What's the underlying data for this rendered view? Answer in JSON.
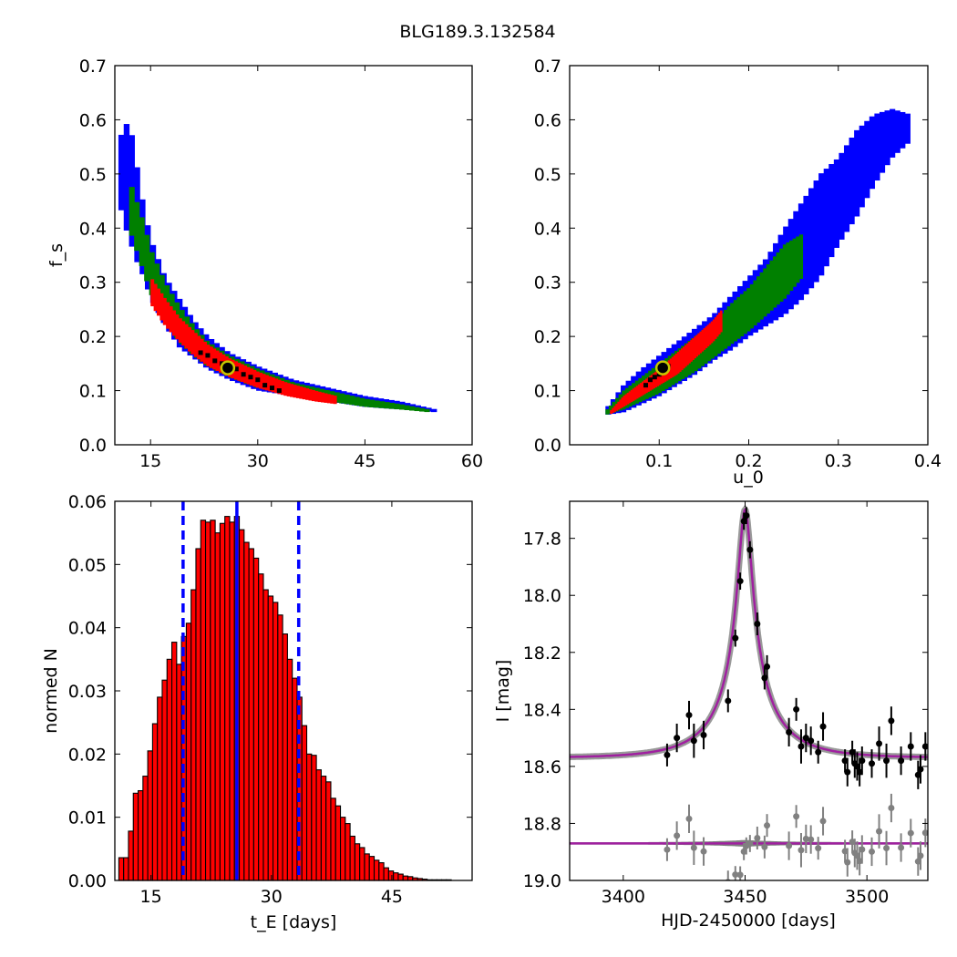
{
  "title": "BLG189.3.132584",
  "colors": {
    "blue": "#0000ff",
    "green": "#008000",
    "red": "#ff0000",
    "black": "#000000",
    "bar_fill": "#ff0000",
    "model": "#a020a0",
    "residual": "#808080",
    "marker_ring": "#c8c800"
  },
  "chart_data": [
    {
      "id": "fs_vs_tE",
      "type": "heatmap",
      "xlabel": "",
      "ylabel": "f_s",
      "xlim": [
        10,
        60
      ],
      "ylim": [
        0.0,
        0.7
      ],
      "xticks": [
        "15",
        "30",
        "45",
        "60"
      ],
      "xtick_values": [
        15,
        30,
        45,
        60
      ],
      "yticks": [
        "0.0",
        "0.1",
        "0.2",
        "0.3",
        "0.4",
        "0.5",
        "0.6",
        "0.7"
      ],
      "ytick_values": [
        0.0,
        0.1,
        0.2,
        0.3,
        0.4,
        0.5,
        0.6,
        0.7
      ],
      "levels": [
        {
          "level": "3sigma",
          "color": "#0000ff",
          "x": [
            10.5,
            11,
            12,
            13,
            14,
            15,
            17,
            19,
            21,
            23,
            26,
            30,
            35,
            40,
            45,
            50,
            55
          ],
          "lo": [
            0.47,
            0.42,
            0.38,
            0.34,
            0.31,
            0.27,
            0.22,
            0.18,
            0.16,
            0.14,
            0.12,
            0.1,
            0.09,
            0.08,
            0.07,
            0.065,
            0.06
          ],
          "hi": [
            0.55,
            0.58,
            0.6,
            0.52,
            0.44,
            0.38,
            0.31,
            0.27,
            0.23,
            0.2,
            0.17,
            0.145,
            0.12,
            0.105,
            0.09,
            0.08,
            0.065
          ]
        },
        {
          "level": "2sigma",
          "color": "#008000",
          "x": [
            12,
            13,
            14,
            15,
            17,
            19,
            21,
            23,
            26,
            30,
            35,
            40,
            45,
            50,
            54
          ],
          "lo": [
            0.4,
            0.36,
            0.32,
            0.28,
            0.23,
            0.19,
            0.165,
            0.145,
            0.125,
            0.105,
            0.09,
            0.08,
            0.07,
            0.065,
            0.06
          ],
          "hi": [
            0.49,
            0.45,
            0.41,
            0.36,
            0.3,
            0.255,
            0.22,
            0.19,
            0.165,
            0.14,
            0.115,
            0.1,
            0.085,
            0.075,
            0.065
          ]
        },
        {
          "level": "1sigma",
          "color": "#ff0000",
          "x": [
            15,
            17,
            19,
            21,
            23,
            26,
            30,
            34,
            38,
            41
          ],
          "lo": [
            0.26,
            0.22,
            0.19,
            0.165,
            0.145,
            0.125,
            0.105,
            0.09,
            0.08,
            0.075
          ],
          "hi": [
            0.31,
            0.27,
            0.235,
            0.21,
            0.185,
            0.16,
            0.135,
            0.115,
            0.1,
            0.09
          ]
        }
      ],
      "mcmc_points": [
        [
          22,
          0.17
        ],
        [
          23,
          0.165
        ],
        [
          24,
          0.155
        ],
        [
          25,
          0.15
        ],
        [
          27,
          0.14
        ],
        [
          28,
          0.13
        ],
        [
          29,
          0.125
        ],
        [
          30,
          0.12
        ],
        [
          31,
          0.11
        ],
        [
          32,
          0.105
        ],
        [
          33,
          0.1
        ]
      ],
      "best_fit": {
        "x": 25.8,
        "y": 0.142
      }
    },
    {
      "id": "fs_vs_u0",
      "type": "heatmap",
      "xlabel": "u_0",
      "ylabel": "",
      "xlim": [
        0.0,
        0.4
      ],
      "ylim": [
        0.0,
        0.7
      ],
      "xticks": [
        "0.1",
        "0.2",
        "0.3",
        "0.4"
      ],
      "xtick_values": [
        0.1,
        0.2,
        0.3,
        0.4
      ],
      "yticks": [
        "0.0",
        "0.1",
        "0.2",
        "0.3",
        "0.4",
        "0.5",
        "0.6",
        "0.7"
      ],
      "ytick_values": [
        0.0,
        0.1,
        0.2,
        0.3,
        0.4,
        0.5,
        0.6,
        0.7
      ],
      "levels": [
        {
          "level": "3sigma",
          "color": "#0000ff",
          "x": [
            0.04,
            0.06,
            0.08,
            0.1,
            0.12,
            0.14,
            0.16,
            0.18,
            0.2,
            0.22,
            0.24,
            0.26,
            0.28,
            0.3,
            0.32,
            0.34,
            0.36,
            0.38
          ],
          "lo": [
            0.055,
            0.06,
            0.075,
            0.09,
            0.11,
            0.13,
            0.155,
            0.175,
            0.2,
            0.22,
            0.24,
            0.27,
            0.31,
            0.37,
            0.42,
            0.48,
            0.53,
            0.56
          ],
          "hi": [
            0.065,
            0.11,
            0.14,
            0.165,
            0.19,
            0.215,
            0.24,
            0.275,
            0.31,
            0.345,
            0.4,
            0.45,
            0.5,
            0.53,
            0.58,
            0.61,
            0.62,
            0.61
          ]
        },
        {
          "level": "2sigma",
          "color": "#008000",
          "x": [
            0.04,
            0.06,
            0.08,
            0.1,
            0.12,
            0.14,
            0.16,
            0.18,
            0.2,
            0.22,
            0.24,
            0.26
          ],
          "lo": [
            0.055,
            0.065,
            0.08,
            0.095,
            0.115,
            0.135,
            0.16,
            0.185,
            0.21,
            0.24,
            0.27,
            0.31
          ],
          "hi": [
            0.062,
            0.1,
            0.125,
            0.15,
            0.175,
            0.2,
            0.225,
            0.26,
            0.29,
            0.33,
            0.37,
            0.39
          ]
        },
        {
          "level": "1sigma",
          "color": "#ff0000",
          "x": [
            0.045,
            0.06,
            0.08,
            0.1,
            0.12,
            0.14,
            0.16,
            0.17
          ],
          "lo": [
            0.056,
            0.07,
            0.09,
            0.11,
            0.13,
            0.16,
            0.19,
            0.21
          ],
          "hi": [
            0.062,
            0.09,
            0.115,
            0.14,
            0.17,
            0.2,
            0.23,
            0.25
          ]
        }
      ],
      "mcmc_points": [
        [
          0.085,
          0.11
        ],
        [
          0.09,
          0.12
        ],
        [
          0.095,
          0.125
        ],
        [
          0.1,
          0.13
        ],
        [
          0.105,
          0.14
        ],
        [
          0.11,
          0.145
        ]
      ],
      "best_fit": {
        "x": 0.104,
        "y": 0.142
      }
    },
    {
      "id": "tE_histogram",
      "type": "bar",
      "xlabel": "t_E [days]",
      "ylabel": "normed N",
      "xlim": [
        10.5,
        55
      ],
      "ylim": [
        0.0,
        0.06
      ],
      "xticks": [
        "15",
        "30",
        "45"
      ],
      "xtick_values": [
        15,
        30,
        45
      ],
      "yticks": [
        "0.00",
        "0.01",
        "0.02",
        "0.03",
        "0.04",
        "0.05",
        "0.06"
      ],
      "ytick_values": [
        0.0,
        0.01,
        0.02,
        0.03,
        0.04,
        0.05,
        0.06
      ],
      "bin_start": 11.0,
      "bin_width": 0.6,
      "values": [
        0.0036,
        0.0036,
        0.0078,
        0.0138,
        0.0142,
        0.0165,
        0.0205,
        0.0248,
        0.029,
        0.0317,
        0.035,
        0.0377,
        0.0342,
        0.0386,
        0.0407,
        0.046,
        0.0525,
        0.057,
        0.0567,
        0.057,
        0.055,
        0.0565,
        0.0576,
        0.0567,
        0.0576,
        0.0555,
        0.0535,
        0.0525,
        0.051,
        0.0485,
        0.046,
        0.045,
        0.044,
        0.042,
        0.039,
        0.035,
        0.032,
        0.029,
        0.0245,
        0.02,
        0.0198,
        0.0175,
        0.0165,
        0.0156,
        0.013,
        0.0118,
        0.01,
        0.009,
        0.007,
        0.0058,
        0.0052,
        0.0042,
        0.0038,
        0.0032,
        0.0028,
        0.002,
        0.0015,
        0.0012,
        0.001,
        0.0007,
        0.0006,
        0.0004,
        0.0003,
        0.0002,
        0.0001,
        0.0001,
        0.0001,
        0.0001,
        0.0001
      ],
      "median": 25.7,
      "lower_bound": 19.0,
      "upper_bound": 33.4
    },
    {
      "id": "light_curve",
      "type": "scatter",
      "xlabel": "HJD-2450000 [days]",
      "ylabel": "I [mag]",
      "xlim": [
        3378,
        3525
      ],
      "ylim": [
        19.0,
        17.67
      ],
      "y_inverted": true,
      "xticks": [
        "3400",
        "3450",
        "3500"
      ],
      "xtick_values": [
        3400,
        3450,
        3500
      ],
      "yticks": [
        "17.8",
        "18.0",
        "18.2",
        "18.4",
        "18.6",
        "18.8",
        "19.0"
      ],
      "ytick_values": [
        17.8,
        18.0,
        18.2,
        18.4,
        18.6,
        18.8,
        19.0
      ],
      "model": {
        "t0": 3450.0,
        "tE": 25.8,
        "u0": 0.104,
        "fs": 0.142,
        "baseline": 18.57
      },
      "residual_offset": 18.87,
      "data_points": [
        [
          3418,
          18.56,
          0.04
        ],
        [
          3422,
          18.5,
          0.05
        ],
        [
          3427,
          18.42,
          0.05
        ],
        [
          3429,
          18.51,
          0.06
        ],
        [
          3433,
          18.49,
          0.05
        ],
        [
          3443,
          18.37,
          0.04
        ],
        [
          3446,
          18.15,
          0.03
        ],
        [
          3448,
          17.95,
          0.03
        ],
        [
          3449.5,
          17.74,
          0.03
        ],
        [
          3450.5,
          17.72,
          0.03
        ],
        [
          3452,
          17.84,
          0.03
        ],
        [
          3455,
          18.1,
          0.04
        ],
        [
          3458,
          18.29,
          0.04
        ],
        [
          3459,
          18.25,
          0.04
        ],
        [
          3468,
          18.48,
          0.05
        ],
        [
          3471,
          18.4,
          0.04
        ],
        [
          3473,
          18.53,
          0.06
        ],
        [
          3475,
          18.5,
          0.05
        ],
        [
          3477,
          18.51,
          0.05
        ],
        [
          3480,
          18.55,
          0.04
        ],
        [
          3482,
          18.46,
          0.05
        ],
        [
          3491,
          18.58,
          0.04
        ],
        [
          3492,
          18.62,
          0.05
        ],
        [
          3494,
          18.55,
          0.04
        ],
        [
          3495,
          18.59,
          0.05
        ],
        [
          3496,
          18.6,
          0.05
        ],
        [
          3497,
          18.62,
          0.05
        ],
        [
          3498,
          18.58,
          0.05
        ],
        [
          3502,
          18.59,
          0.05
        ],
        [
          3505,
          18.52,
          0.06
        ],
        [
          3508,
          18.58,
          0.06
        ],
        [
          3510,
          18.44,
          0.05
        ],
        [
          3514,
          18.58,
          0.05
        ],
        [
          3518,
          18.53,
          0.05
        ],
        [
          3521,
          18.63,
          0.05
        ],
        [
          3522,
          18.61,
          0.05
        ],
        [
          3524,
          18.53,
          0.05
        ]
      ]
    }
  ]
}
